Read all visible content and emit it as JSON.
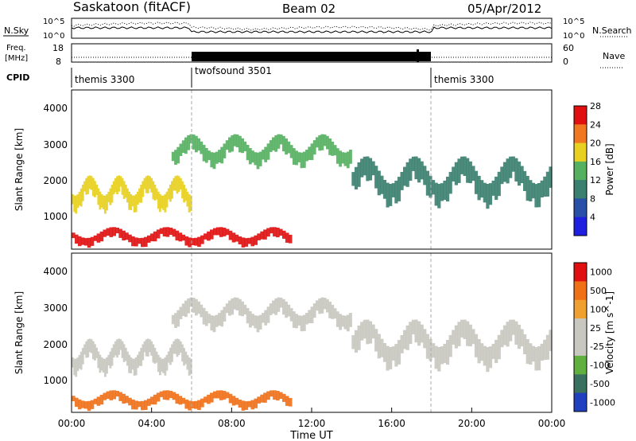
{
  "header": {
    "title_left": "Saskatoon (fitACF)",
    "title_center": "Beam 02",
    "title_right": "05/Apr/2012"
  },
  "strip_panels": {
    "nsky": {
      "label": "N.Sky",
      "tick_top": "10^5",
      "tick_bottom": "10^0",
      "right_tick_top": "10^5",
      "right_tick_bottom": "10^0",
      "right_label": "N.Search"
    },
    "freq": {
      "label_line1": "Freq.",
      "label_line2": "[MHz]",
      "tick_top": "18",
      "tick_bottom": "8",
      "right_tick_top": "60",
      "right_tick_bottom": "0",
      "right_label": "Nave"
    },
    "cpid": {
      "label": "CPID",
      "segments": [
        {
          "name": "themis 3300",
          "start_hour": 0,
          "end_hour": 6
        },
        {
          "name": "twofsound 3501",
          "start_hour": 6,
          "end_hour": 18
        },
        {
          "name": "themis 3300",
          "start_hour": 18,
          "end_hour": 24
        }
      ]
    }
  },
  "chart_data": [
    {
      "type": "heatmap",
      "title": "Power",
      "xlabel": "Time UT",
      "ylabel": "Slant Range [km]",
      "x_tick_labels": [
        "00:00",
        "04:00",
        "08:00",
        "12:00",
        "16:00",
        "20:00",
        "00:00"
      ],
      "xlim_hours": [
        0,
        24
      ],
      "y_tick_labels": [
        "1000",
        "2000",
        "3000",
        "4000"
      ],
      "ylim": [
        180,
        4500
      ],
      "colorbar": {
        "label": "Power [dB]",
        "ticks": [
          "4",
          "8",
          "12",
          "16",
          "20",
          "24",
          "28"
        ],
        "range": [
          0,
          30
        ],
        "colors": [
          "#1f1fe0",
          "#2a4fa8",
          "#3a7f6f",
          "#55b060",
          "#e8d020",
          "#f07820",
          "#e01010"
        ]
      },
      "scatter_bands": [
        {
          "name": "near-range band",
          "hours": [
            0,
            11
          ],
          "range_km": [
            300,
            900
          ],
          "power_db": 26
        },
        {
          "name": "lower rising band",
          "hours": [
            0,
            6
          ],
          "range_km": [
            1300,
            2400
          ],
          "power_db": 20
        },
        {
          "name": "upper arc",
          "hours": [
            5,
            14
          ],
          "range_km": [
            2500,
            3500
          ],
          "power_db": 14
        },
        {
          "name": "descending band",
          "hours": [
            14,
            24
          ],
          "range_km": [
            1500,
            3000
          ],
          "power_db": 9
        }
      ]
    },
    {
      "type": "heatmap",
      "title": "Velocity",
      "xlabel": "Time UT",
      "ylabel": "Slant Range [km]",
      "x_tick_labels": [
        "00:00",
        "04:00",
        "08:00",
        "12:00",
        "16:00",
        "20:00",
        "00:00"
      ],
      "xlim_hours": [
        0,
        24
      ],
      "y_tick_labels": [
        "1000",
        "2000",
        "3000",
        "4000"
      ],
      "ylim": [
        180,
        4500
      ],
      "colorbar": {
        "label": "Velocity [m s^-1]",
        "ticks": [
          "1000",
          "500",
          "100",
          "25",
          "-25",
          "-100",
          "-500",
          "-1000"
        ],
        "colors": [
          "#2040c0",
          "#3a7060",
          "#60b040",
          "#c8c8c0",
          "#c8c8c0",
          "#f0a030",
          "#f07018",
          "#e01010"
        ]
      },
      "scatter_bands": [
        {
          "name": "near-range band",
          "hours": [
            0,
            11
          ],
          "range_km": [
            300,
            900
          ],
          "velocity": -200
        },
        {
          "name": "lower rising band",
          "hours": [
            0,
            6
          ],
          "range_km": [
            1300,
            2400
          ],
          "velocity": 0
        },
        {
          "name": "upper arc",
          "hours": [
            5,
            14
          ],
          "range_km": [
            2500,
            3500
          ],
          "velocity": 0
        },
        {
          "name": "descending band",
          "hours": [
            14,
            24
          ],
          "range_km": [
            1500,
            3000
          ],
          "velocity": 0
        }
      ]
    }
  ]
}
